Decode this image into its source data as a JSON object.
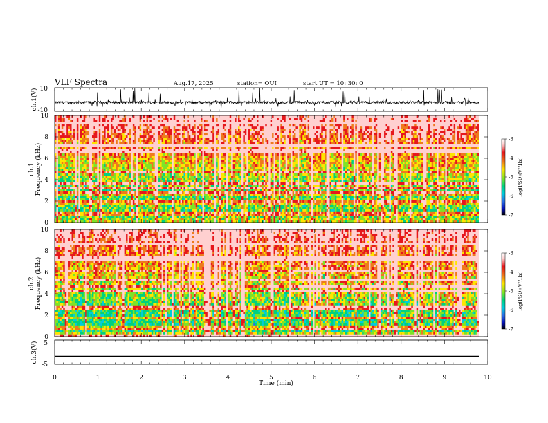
{
  "header": {
    "title": "VLF Spectra",
    "date": "Aug.17, 2025",
    "station": "station= OUI",
    "start": "start  UT  =   10: 30: 0"
  },
  "colors": {
    "colormap": [
      "#ffffff",
      "#e6171c",
      "#ee7a1c",
      "#ffe400",
      "#7fe327",
      "#00d17e",
      "#00ccdd",
      "#2b6fe3",
      "#0610b8",
      "#000000"
    ]
  },
  "chart_data": [
    {
      "type": "line",
      "panel": "ch1-waveform",
      "ylabel": "ch.1(V)",
      "ylim": [
        -10,
        10
      ],
      "yticks": [
        "10",
        "-10"
      ],
      "xlim": [
        0,
        10
      ],
      "baseline": -2.5
    },
    {
      "type": "heatmap",
      "panel": "ch1-spectrogram",
      "ylabel": "ch.1\nFrequency (kHz)",
      "ylabel_top": "ch.1",
      "ylabel_main": "Frequency (kHz)",
      "ylim": [
        0,
        10
      ],
      "yticks": [
        "0",
        "2",
        "4",
        "6",
        "8",
        "10"
      ],
      "xlim": [
        0,
        10
      ],
      "data_end_min": 9.8,
      "colorbar": {
        "label": "log(PSD)(V²/Hz)",
        "range": [
          -7,
          -3
        ],
        "ticks": [
          "-3",
          "-4",
          "-5",
          "-6",
          "-7"
        ]
      }
    },
    {
      "type": "heatmap",
      "panel": "ch2-spectrogram",
      "ylabel_top": "ch.2",
      "ylabel_main": "Frequency (kHz)",
      "ylim": [
        0,
        10
      ],
      "yticks": [
        "0",
        "2",
        "4",
        "6",
        "8",
        "10"
      ],
      "xlim": [
        0,
        10
      ],
      "data_end_min": 9.8,
      "colorbar": {
        "label": "log(PSD)(V²/Hz)",
        "range": [
          -7,
          -3
        ],
        "ticks": [
          "-3",
          "-4",
          "-5",
          "-6",
          "-7"
        ]
      }
    },
    {
      "type": "line",
      "panel": "ch3-waveform",
      "ylabel": "ch.3(V)",
      "ylim": [
        -5,
        5
      ],
      "yticks": [
        "5",
        "-5"
      ],
      "xlim": [
        0,
        10
      ],
      "baseline": -1.7,
      "xlabel": "Time (min)",
      "xticks": [
        "0",
        "1",
        "2",
        "3",
        "4",
        "5",
        "6",
        "7",
        "8",
        "9",
        "10"
      ]
    }
  ]
}
